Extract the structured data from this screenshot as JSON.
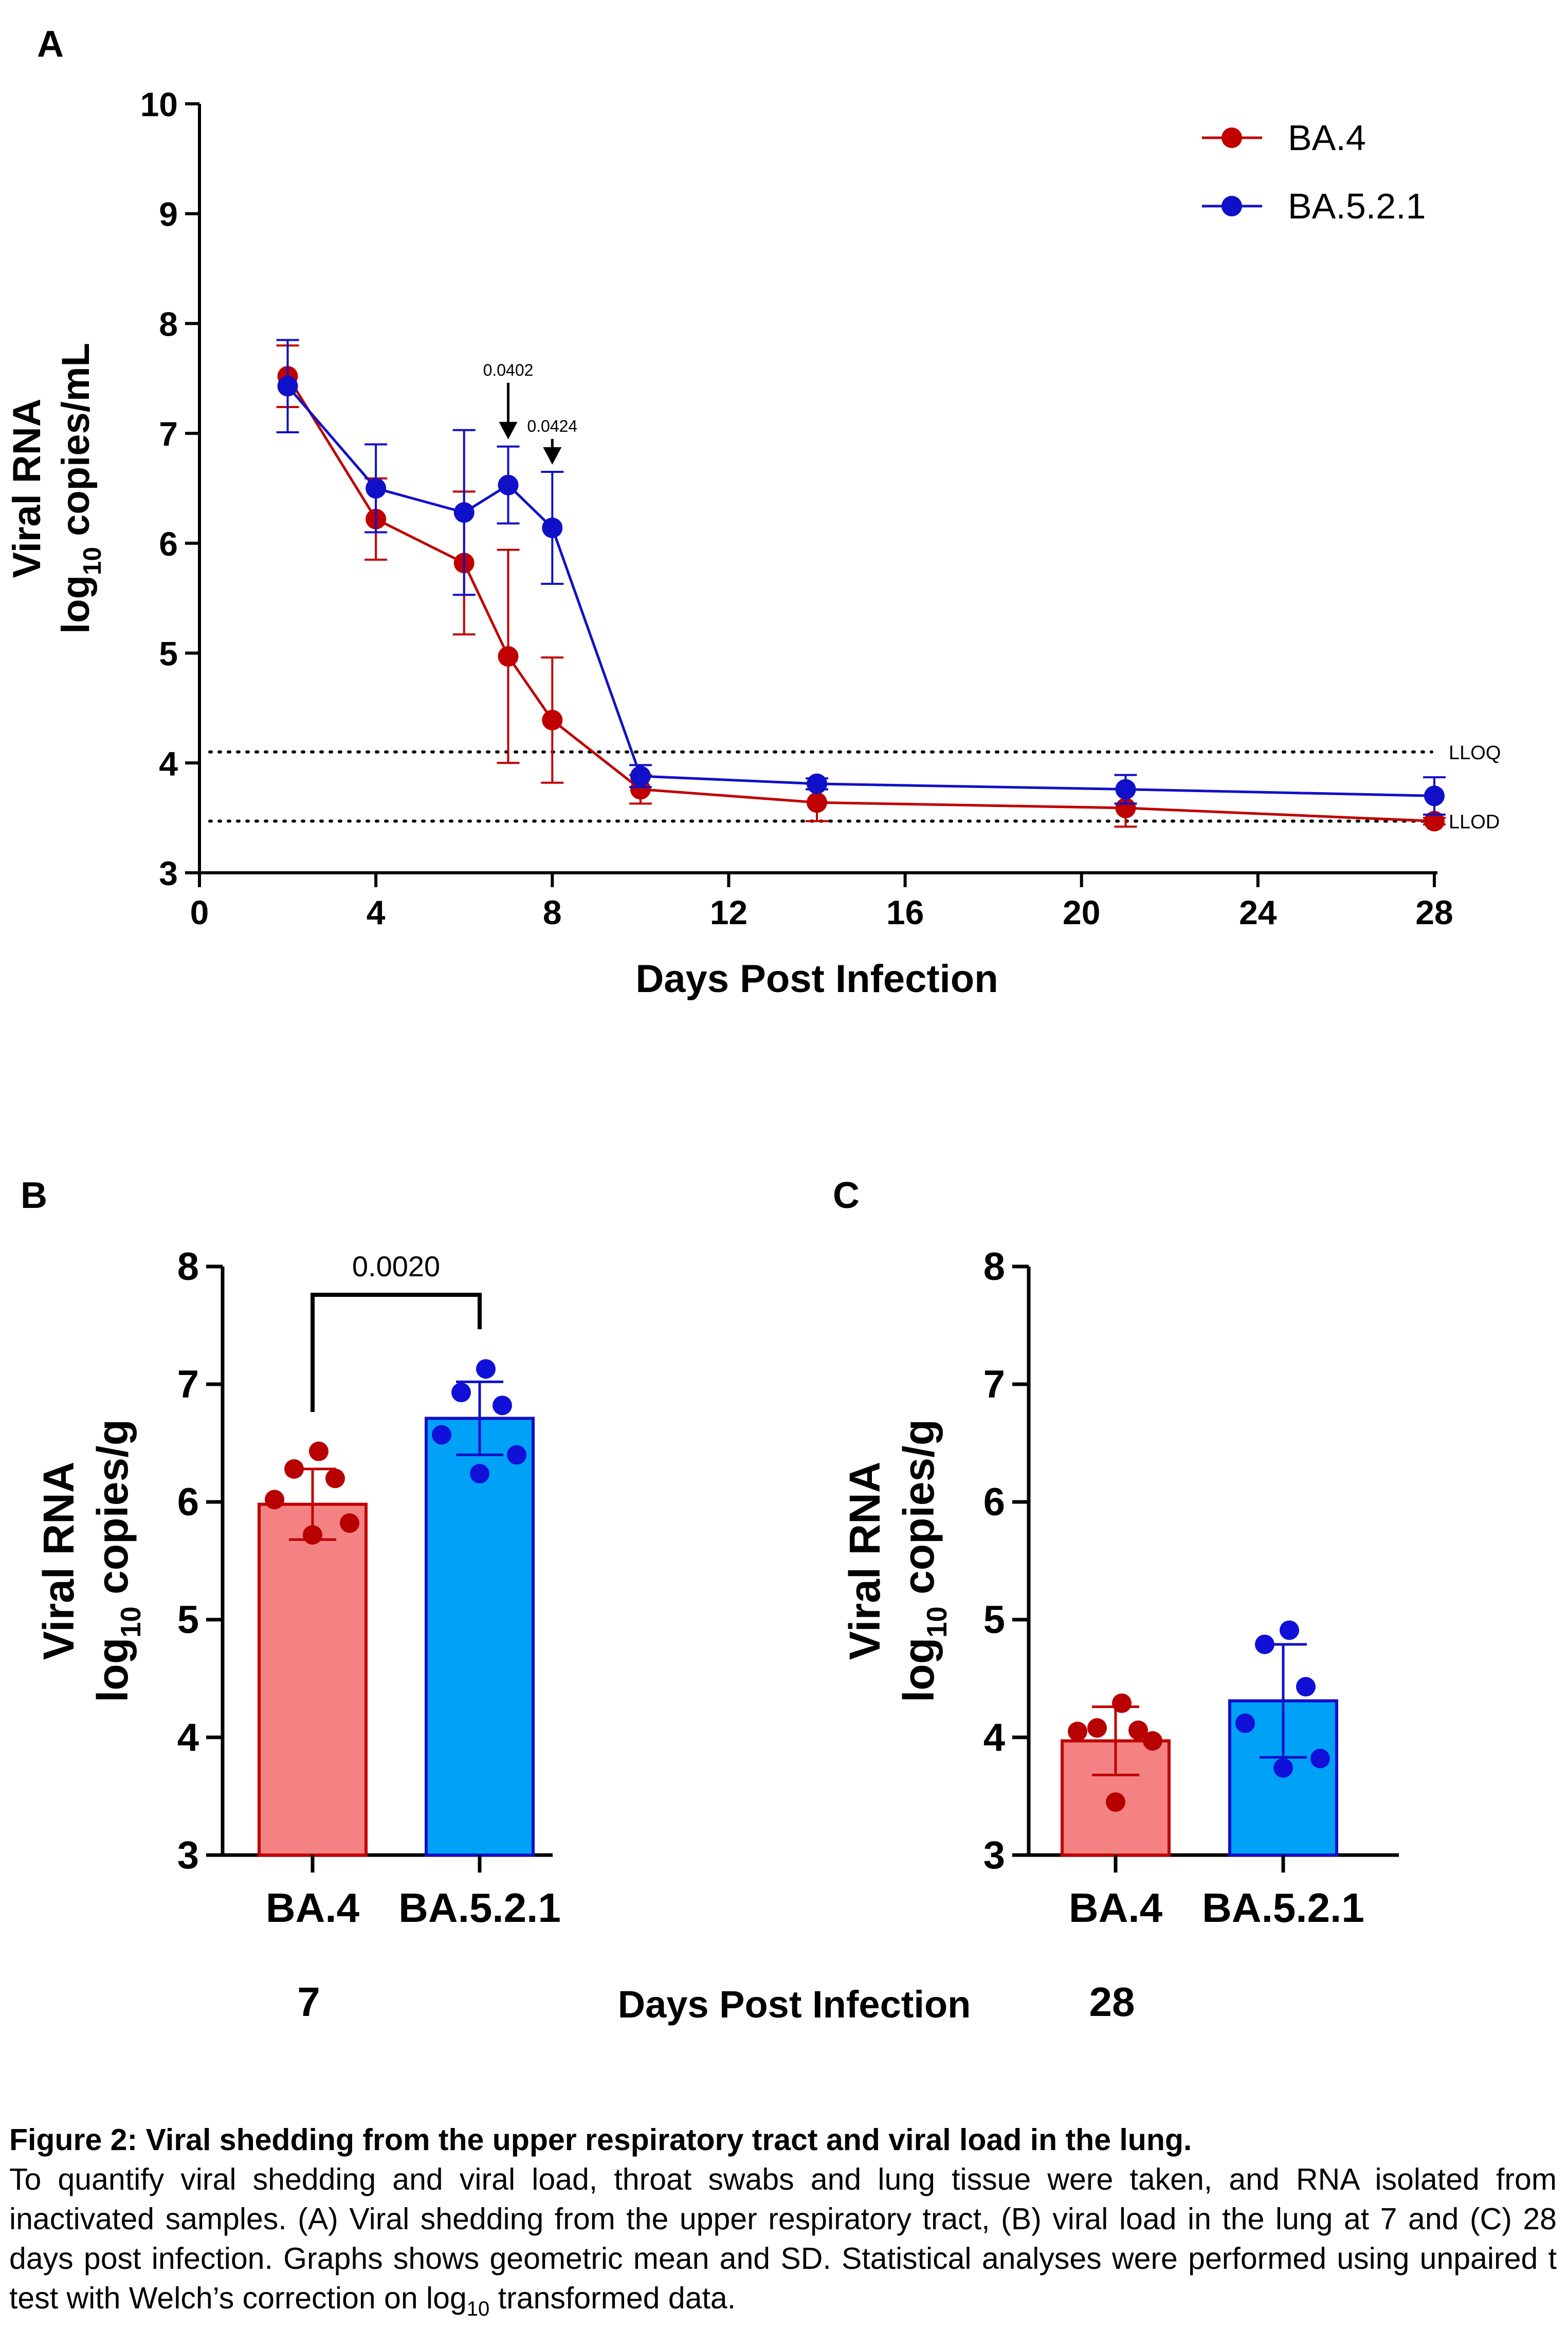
{
  "panels": {
    "A": "A",
    "B": "B",
    "C": "C"
  },
  "chart_data": [
    {
      "id": "A",
      "type": "line",
      "title": "",
      "xlabel": "Days Post Infection",
      "ylabel_line1": "Viral RNA",
      "ylabel_line2_prefix": "log",
      "ylabel_line2_sub": "10",
      "ylabel_line2_suffix": " copies/mL",
      "xlim": [
        0,
        28
      ],
      "ylim": [
        3,
        10
      ],
      "xticks": [
        0,
        4,
        8,
        12,
        16,
        20,
        24,
        28
      ],
      "yticks": [
        3,
        4,
        5,
        6,
        7,
        8,
        9,
        10
      ],
      "legend_position": "top-right",
      "grid": false,
      "series": [
        {
          "name": "BA.4",
          "color": "#c00000",
          "x": [
            2,
            4,
            6,
            7,
            8,
            10,
            14,
            21,
            28
          ],
          "y": [
            7.52,
            6.22,
            5.82,
            4.97,
            4.39,
            3.76,
            3.64,
            3.59,
            3.47
          ],
          "err": [
            0.28,
            0.37,
            0.65,
            0.97,
            0.57,
            0.13,
            0.17,
            0.17,
            0.03
          ]
        },
        {
          "name": "BA.5.2.1",
          "color": "#1010c8",
          "x": [
            2,
            4,
            6,
            7,
            8,
            10,
            14,
            21,
            28
          ],
          "y": [
            7.43,
            6.5,
            6.28,
            6.53,
            6.14,
            3.88,
            3.81,
            3.76,
            3.7
          ],
          "err": [
            0.42,
            0.4,
            0.75,
            0.35,
            0.51,
            0.1,
            0.05,
            0.13,
            0.17
          ]
        }
      ],
      "reference_lines": [
        {
          "label": "LLOQ",
          "y": 4.1
        },
        {
          "label": "LLOD",
          "y": 3.47
        }
      ],
      "annotations": [
        {
          "label": "0.0402",
          "x": 7
        },
        {
          "label": "0.0424",
          "x": 8
        }
      ]
    },
    {
      "id": "B",
      "type": "bar",
      "ylabel_line1": "Viral RNA",
      "ylabel_line2_prefix": "log",
      "ylabel_line2_sub": "10",
      "ylabel_line2_suffix": " copies/g",
      "ylim": [
        3,
        8
      ],
      "yticks": [
        3,
        4,
        5,
        6,
        7,
        8
      ],
      "categories": [
        "BA.4",
        "BA.5.2.1"
      ],
      "values": [
        5.98,
        6.71
      ],
      "err": [
        0.3,
        0.31
      ],
      "fill_colors": [
        "#f48282",
        "#00a2f8"
      ],
      "edge_colors": [
        "#c00000",
        "#1010c8"
      ],
      "point_colors": [
        "#b80000",
        "#1010d8"
      ],
      "points": [
        [
          6.43,
          6.28,
          6.2,
          6.02,
          5.82,
          5.72
        ],
        [
          7.13,
          6.93,
          6.82,
          6.57,
          6.4,
          6.24
        ]
      ],
      "significance": "0.0020",
      "day_label": "7"
    },
    {
      "id": "C",
      "type": "bar",
      "ylabel_line1": "Viral RNA",
      "ylabel_line2_prefix": "log",
      "ylabel_line2_sub": "10",
      "ylabel_line2_suffix": " copies/g",
      "ylim": [
        3,
        8
      ],
      "yticks": [
        3,
        4,
        5,
        6,
        7,
        8
      ],
      "categories": [
        "BA.4",
        "BA.5.2.1"
      ],
      "values": [
        3.97,
        4.31
      ],
      "err": [
        0.29,
        0.48
      ],
      "fill_colors": [
        "#f48282",
        "#00a2f8"
      ],
      "edge_colors": [
        "#c00000",
        "#1010c8"
      ],
      "point_colors": [
        "#b80000",
        "#1010d8"
      ],
      "points": [
        [
          4.29,
          4.08,
          4.06,
          4.05,
          3.97,
          3.45
        ],
        [
          4.91,
          4.79,
          4.43,
          4.12,
          3.82,
          3.74
        ]
      ],
      "day_label": "28"
    }
  ],
  "shared_xlabel": "Days Post Infection",
  "caption": {
    "title": "Figure 2: Viral shedding from the upper respiratory tract and viral load in the lung.",
    "body_before_sub": "To quantify viral shedding and viral load, throat swabs and lung tissue were taken, and RNA isolated from inactivated samples. (A) Viral shedding from the upper respiratory tract, (B) viral load in the lung at 7 and (C) 28 days post infection. Graphs shows geometric mean and SD. Statistical analyses were performed using unpaired t test with Welch’s correction on log",
    "sub": "10",
    "body_after_sub": " transformed data."
  }
}
